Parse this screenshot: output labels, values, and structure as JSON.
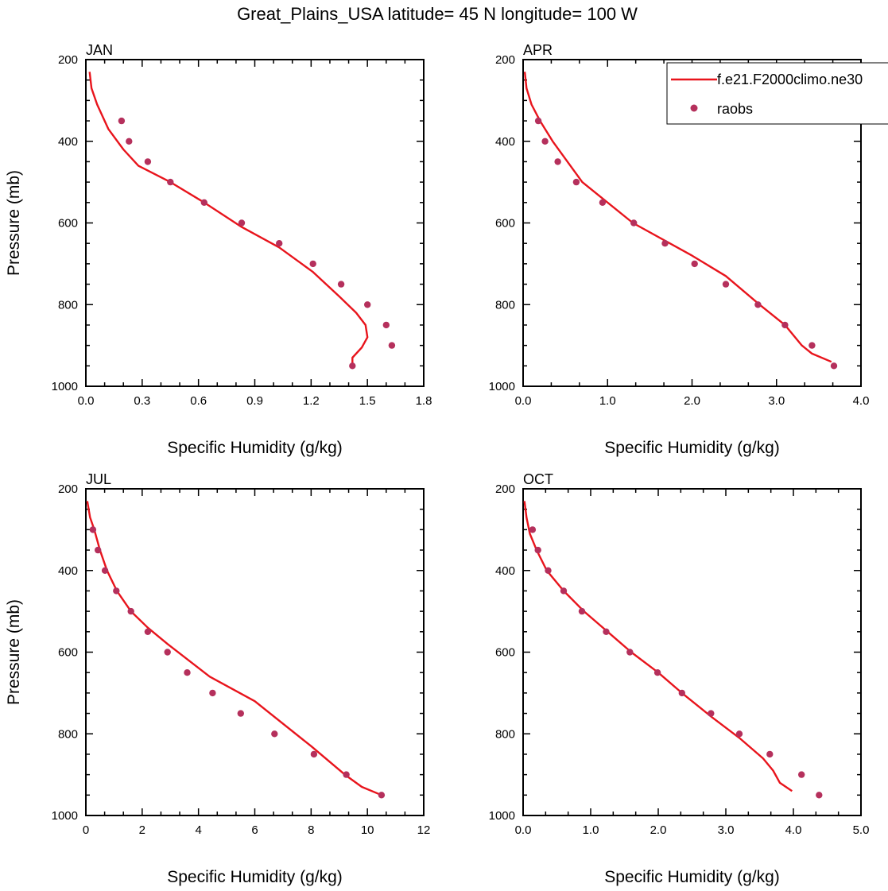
{
  "title": "Great_Plains_USA  latitude= 45 N longitude= 100 W",
  "legend": {
    "model_label": "f.e21.F2000climo.ne30",
    "obs_label": "raobs",
    "colors": {
      "model": "#e8141c",
      "obs": "#b5305c"
    }
  },
  "chart_data": [
    {
      "type": "line",
      "panel": "JAN",
      "xlabel": "Specific Humidity (g/kg)",
      "ylabel": "Pressure (mb)",
      "xlim": [
        0,
        1.8
      ],
      "ylim": [
        1000,
        200
      ],
      "y_reversed": true,
      "xticks": [
        0.0,
        0.3,
        0.6,
        0.9,
        1.2,
        1.5,
        1.8
      ],
      "xtick_labels": [
        "0.0",
        "0.3",
        "0.6",
        "0.9",
        "1.2",
        "1.5",
        "1.8"
      ],
      "yticks": [
        200,
        400,
        600,
        800,
        1000
      ],
      "ytick_labels": [
        "200",
        "400",
        "600",
        "800",
        "1000"
      ],
      "series": [
        {
          "name": "f.e21.F2000climo.ne30",
          "kind": "line",
          "x": [
            0.02,
            0.03,
            0.06,
            0.12,
            0.2,
            0.28,
            0.45,
            0.63,
            0.83,
            1.03,
            1.21,
            1.35,
            1.44,
            1.49,
            1.5,
            1.47,
            1.42,
            1.42
          ],
          "y": [
            230,
            270,
            310,
            370,
            420,
            460,
            500,
            550,
            610,
            660,
            720,
            780,
            820,
            850,
            880,
            905,
            930,
            950
          ]
        },
        {
          "name": "raobs",
          "kind": "scatter",
          "x": [
            0.19,
            0.23,
            0.33,
            0.45,
            0.63,
            0.83,
            1.03,
            1.21,
            1.36,
            1.5,
            1.6,
            1.63,
            1.42
          ],
          "y": [
            350,
            400,
            450,
            500,
            550,
            600,
            650,
            700,
            750,
            800,
            850,
            900,
            950
          ]
        }
      ]
    },
    {
      "type": "line",
      "panel": "APR",
      "xlabel": "Specific Humidity (g/kg)",
      "ylabel": "",
      "xlim": [
        0,
        4
      ],
      "ylim": [
        1000,
        200
      ],
      "y_reversed": true,
      "xticks": [
        0,
        1,
        2,
        3,
        4
      ],
      "xtick_labels": [
        "0.0",
        "1.0",
        "2.0",
        "3.0",
        "4.0"
      ],
      "yticks": [
        200,
        400,
        600,
        800,
        1000
      ],
      "ytick_labels": [
        "200",
        "400",
        "600",
        "800",
        "1000"
      ],
      "series": [
        {
          "name": "f.e21.F2000climo.ne30",
          "kind": "line",
          "x": [
            0.02,
            0.04,
            0.1,
            0.2,
            0.35,
            0.7,
            1.3,
            2.0,
            2.4,
            2.8,
            3.1,
            3.3,
            3.42,
            3.65
          ],
          "y": [
            230,
            270,
            310,
            350,
            400,
            500,
            600,
            680,
            730,
            800,
            850,
            900,
            920,
            940
          ]
        },
        {
          "name": "raobs",
          "kind": "scatter",
          "x": [
            0.18,
            0.26,
            0.41,
            0.63,
            0.94,
            1.31,
            1.68,
            2.03,
            2.4,
            2.78,
            3.1,
            3.42,
            3.68
          ],
          "y": [
            350,
            400,
            450,
            500,
            550,
            600,
            650,
            700,
            750,
            800,
            850,
            900,
            950
          ]
        }
      ]
    },
    {
      "type": "line",
      "panel": "JUL",
      "xlabel": "Specific Humidity (g/kg)",
      "ylabel": "Pressure (mb)",
      "xlim": [
        0,
        12
      ],
      "ylim": [
        1000,
        200
      ],
      "y_reversed": true,
      "xticks": [
        0,
        2,
        4,
        6,
        8,
        10,
        12
      ],
      "xtick_labels": [
        "0",
        "2",
        "4",
        "6",
        "8",
        "10",
        "12"
      ],
      "yticks": [
        200,
        400,
        600,
        800,
        1000
      ],
      "ytick_labels": [
        "200",
        "400",
        "600",
        "800",
        "1000"
      ],
      "series": [
        {
          "name": "f.e21.F2000climo.ne30",
          "kind": "line",
          "x": [
            0.05,
            0.15,
            0.3,
            0.5,
            0.75,
            1.1,
            1.6,
            2.2,
            2.9,
            4.4,
            6.0,
            8.0,
            9.2,
            9.8,
            10.5
          ],
          "y": [
            230,
            270,
            300,
            350,
            400,
            450,
            500,
            540,
            580,
            660,
            720,
            830,
            900,
            930,
            950
          ]
        },
        {
          "name": "raobs",
          "kind": "scatter",
          "x": [
            0.25,
            0.43,
            0.68,
            1.08,
            1.6,
            2.2,
            2.9,
            3.6,
            4.5,
            5.5,
            6.7,
            8.1,
            9.25,
            10.5
          ],
          "y": [
            300,
            350,
            400,
            450,
            500,
            550,
            600,
            650,
            700,
            750,
            800,
            850,
            900,
            950
          ]
        }
      ]
    },
    {
      "type": "line",
      "panel": "OCT",
      "xlabel": "Specific Humidity (g/kg)",
      "ylabel": "",
      "xlim": [
        0,
        5
      ],
      "ylim": [
        1000,
        200
      ],
      "y_reversed": true,
      "xticks": [
        0,
        1,
        2,
        3,
        4,
        5
      ],
      "xtick_labels": [
        "0.0",
        "1.0",
        "2.0",
        "3.0",
        "4.0",
        "5.0"
      ],
      "yticks": [
        200,
        400,
        600,
        800,
        1000
      ],
      "ytick_labels": [
        "200",
        "400",
        "600",
        "800",
        "1000"
      ],
      "series": [
        {
          "name": "f.e21.F2000climo.ne30",
          "kind": "line",
          "x": [
            0.02,
            0.05,
            0.1,
            0.2,
            0.35,
            0.6,
            0.9,
            1.25,
            1.6,
            2.0,
            2.35,
            2.8,
            3.2,
            3.55,
            3.7,
            3.8,
            3.98
          ],
          "y": [
            230,
            270,
            310,
            350,
            400,
            450,
            500,
            550,
            600,
            650,
            700,
            760,
            810,
            860,
            890,
            920,
            940
          ]
        },
        {
          "name": "raobs",
          "kind": "scatter",
          "x": [
            0.14,
            0.22,
            0.37,
            0.6,
            0.87,
            1.23,
            1.58,
            1.99,
            2.35,
            2.78,
            3.2,
            3.65,
            4.12,
            4.38
          ],
          "y": [
            300,
            350,
            400,
            450,
            500,
            550,
            600,
            650,
            700,
            750,
            800,
            850,
            900,
            950
          ]
        }
      ]
    }
  ]
}
